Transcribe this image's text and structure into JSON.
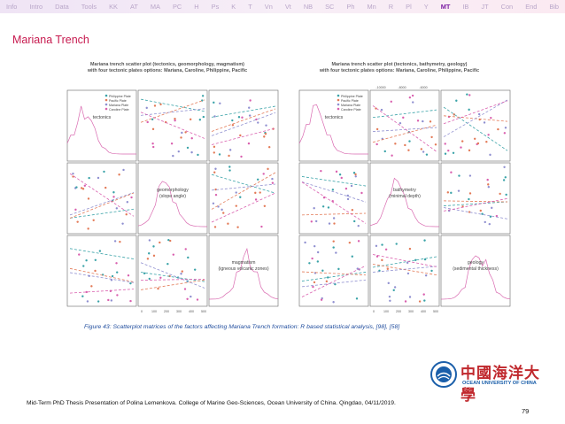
{
  "nav": {
    "items": [
      "Info",
      "Intro",
      "Data",
      "Tools",
      "KK",
      "AT",
      "MA",
      "PC",
      "H",
      "Ps",
      "K",
      "T",
      "Vn",
      "Vt",
      "NB",
      "SC",
      "Ph",
      "Mn",
      "R",
      "Pl",
      "Y",
      "MT",
      "IB",
      "JT",
      "Con",
      "End",
      "Bib"
    ],
    "active_index": 21
  },
  "frame": {
    "title": "Mariana Trench"
  },
  "figure": {
    "left": {
      "title": "Mariana trench scatter plot (tectonics, geomorphology, magmatism)\nwith four tectonic plates options: Mariana, Caroline, Philippine, Pacific",
      "diag_labels": [
        "tectonics",
        "geomorphology\n(slope angle)",
        "magmatism\n(igneous volcanic zones)"
      ],
      "legend": [
        "Philippine Plate",
        "Pacific Plate",
        "Mariana Plate",
        "Caroline Plate"
      ],
      "bottom_ticks": [
        "0",
        "100",
        "200",
        "300",
        "400",
        "500"
      ]
    },
    "right": {
      "title": "Mariana trench scatter plot (tectonics, bathymetry, geology)\nwith four tectonic plates options: Mariana, Caroline, Philippine, Pacific",
      "diag_labels": [
        "tectonics",
        "bathymetry\n(minimal depth)",
        "geology\n(sedimental thickness)"
      ],
      "legend": [
        "Philippine Plate",
        "Pacific Plate",
        "Mariana Plate",
        "Caroline Plate"
      ],
      "top_ticks": [
        "-10000",
        "-8000",
        "-6000"
      ],
      "bottom_ticks": [
        "0",
        "100",
        "200",
        "300",
        "400",
        "500"
      ]
    },
    "colors": {
      "philippine": "#3aa3a8",
      "pacific": "#e37a57",
      "mariana": "#8f8fd0",
      "caroline": "#d95fae"
    }
  },
  "caption": "Figure 43: Scatterplot matrices of the factors affecting Mariana Trench formation: R based statistical analysis, [98], [58]",
  "logo": {
    "cn_name": "中國海洋大學",
    "en_name": "OCEAN UNIVERSITY OF CHINA"
  },
  "footer": {
    "text": "Mid-Term PhD Thesis Presentation of Polina Lemenkova. College of Marine Geo-Sciences, Ocean University of China. Qingdao, 04/11/2019.",
    "page": "79"
  }
}
